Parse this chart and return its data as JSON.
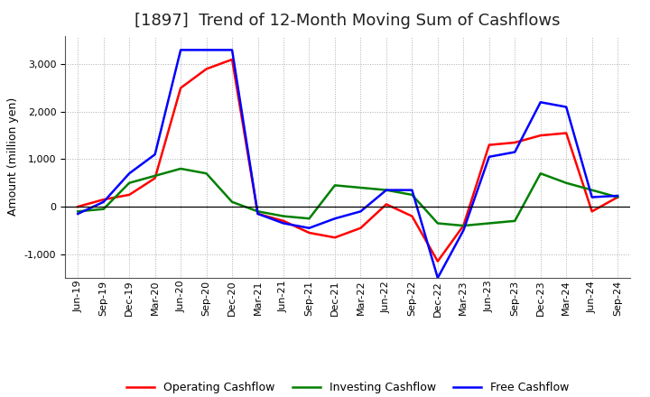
{
  "title": "[1897]  Trend of 12-Month Moving Sum of Cashflows",
  "ylabel": "Amount (million yen)",
  "x_labels": [
    "Jun-19",
    "Sep-19",
    "Dec-19",
    "Mar-20",
    "Jun-20",
    "Sep-20",
    "Dec-20",
    "Mar-21",
    "Jun-21",
    "Sep-21",
    "Dec-21",
    "Mar-22",
    "Jun-22",
    "Sep-22",
    "Dec-22",
    "Mar-23",
    "Jun-23",
    "Sep-23",
    "Dec-23",
    "Mar-24",
    "Jun-24",
    "Sep-24"
  ],
  "operating": [
    0,
    150,
    250,
    600,
    2500,
    2900,
    3100,
    -150,
    -300,
    -550,
    -650,
    -450,
    50,
    -200,
    -1150,
    -400,
    1300,
    1350,
    1500,
    1550,
    -100,
    200
  ],
  "investing": [
    -100,
    -50,
    500,
    650,
    800,
    700,
    100,
    -100,
    -200,
    -250,
    450,
    400,
    350,
    250,
    -350,
    -400,
    -350,
    -300,
    700,
    500,
    350,
    200
  ],
  "free": [
    -150,
    100,
    700,
    1100,
    3300,
    3300,
    3300,
    -150,
    -350,
    -450,
    -250,
    -100,
    350,
    350,
    -1500,
    -500,
    1050,
    1150,
    2200,
    2100,
    200,
    230
  ],
  "operating_color": "#ff0000",
  "investing_color": "#008000",
  "free_color": "#0000ff",
  "ylim": [
    -1500,
    3600
  ],
  "yticks": [
    -1000,
    0,
    1000,
    2000,
    3000
  ],
  "bg_color": "#ffffff",
  "plot_bg_color": "#ffffff",
  "grid_color": "#999999",
  "title_fontsize": 13,
  "label_fontsize": 9,
  "tick_fontsize": 8,
  "legend_fontsize": 9,
  "linewidth": 1.8
}
